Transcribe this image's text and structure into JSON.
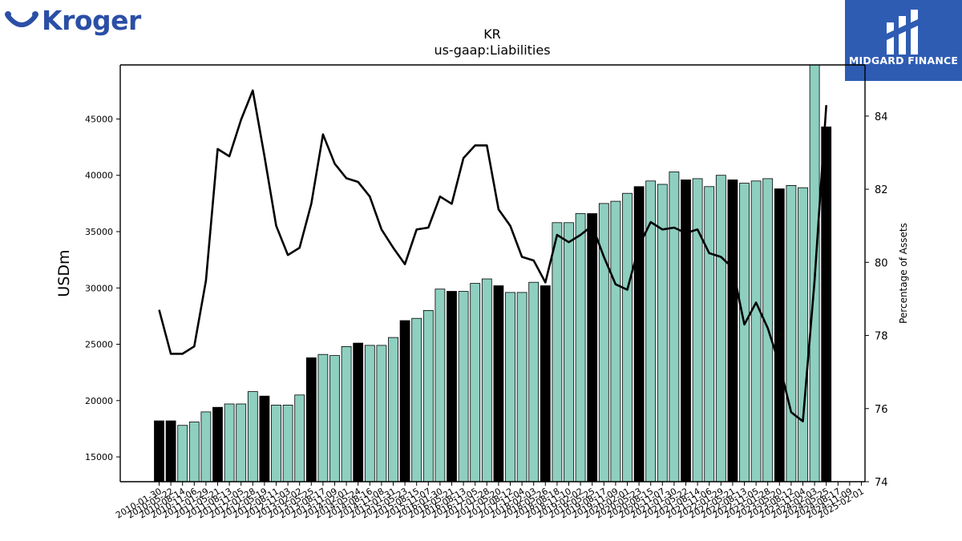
{
  "brand": {
    "name": "Kroger",
    "partner": "MIDGARD FINANCE"
  },
  "colors": {
    "bar_teal": "#8ecfc0",
    "bar_black": "#000000",
    "line": "#000000",
    "kroger_blue": "#2b4fa6",
    "midgard_bg": "#2f5cb3"
  },
  "chart_data": {
    "type": "bar",
    "title": "KR",
    "subtitle": "us-gaap:Liabilities",
    "ylabel": "USDm",
    "y2label": "Percentage of Assets",
    "ylim": [
      12800,
      49800
    ],
    "y2lim": [
      74,
      85.4
    ],
    "yticks": [
      15000,
      20000,
      25000,
      30000,
      35000,
      40000,
      45000
    ],
    "y2ticks": [
      74,
      76,
      78,
      80,
      82,
      84
    ],
    "categories": [
      "2010-01-30",
      "2010-05-22",
      "2010-08-14",
      "2010-11-06",
      "2011-01-29",
      "2011-05-21",
      "2011-08-13",
      "2011-11-05",
      "2012-01-28",
      "2012-05-19",
      "2012-08-11",
      "2012-11-03",
      "2013-02-02",
      "2013-05-25",
      "2013-08-17",
      "2013-11-09",
      "2014-02-01",
      "2014-05-24",
      "2014-08-16",
      "2014-11-08",
      "2015-01-31",
      "2015-05-23",
      "2015-08-15",
      "2015-11-07",
      "2016-01-30",
      "2016-05-21",
      "2016-08-13",
      "2016-11-05",
      "2017-01-28",
      "2017-05-20",
      "2017-08-12",
      "2017-11-04",
      "2018-02-03",
      "2018-05-26",
      "2018-08-18",
      "2018-11-10",
      "2019-02-02",
      "2019-05-25",
      "2019-08-17",
      "2019-11-09",
      "2020-02-01",
      "2020-05-23",
      "2020-08-15",
      "2020-11-07",
      "2021-01-30",
      "2021-05-22",
      "2021-08-14",
      "2021-11-06",
      "2022-01-29",
      "2022-05-21",
      "2022-08-13",
      "2022-11-05",
      "2023-01-28",
      "2023-05-20",
      "2023-08-12",
      "2023-11-04",
      "2024-02-03",
      "2024-05-25",
      "2024-08-17",
      "2024-11-09",
      "2025-02-01"
    ],
    "series": [
      {
        "type": "bar",
        "values": [
          18200,
          18200,
          17800,
          18100,
          19000,
          19400,
          19700,
          19700,
          20800,
          20400,
          19600,
          19600,
          20500,
          23800,
          24100,
          24000,
          24800,
          25100,
          24900,
          24900,
          25600,
          27100,
          27300,
          28000,
          29900,
          29700,
          29700,
          30400,
          30800,
          30200,
          29600,
          29600,
          30500,
          30200,
          35800,
          35800,
          36600,
          36600,
          37500,
          37700,
          38400,
          39000,
          39500,
          39200,
          40300,
          39600,
          39700,
          39000,
          40000,
          39600,
          39300,
          39500,
          39700,
          38800,
          39100,
          38900,
          49800,
          44300,
          null,
          null,
          null
        ],
        "highlight": [
          true,
          true,
          false,
          false,
          false,
          true,
          false,
          false,
          false,
          true,
          false,
          false,
          false,
          true,
          false,
          false,
          false,
          true,
          false,
          false,
          false,
          true,
          false,
          false,
          false,
          true,
          false,
          false,
          false,
          true,
          false,
          false,
          false,
          true,
          false,
          false,
          false,
          true,
          false,
          false,
          false,
          true,
          false,
          false,
          false,
          true,
          false,
          false,
          false,
          true,
          false,
          false,
          false,
          true,
          false,
          false,
          false,
          true,
          false,
          false,
          false
        ]
      },
      {
        "type": "line",
        "values": [
          78.7,
          77.5,
          77.5,
          77.7,
          79.5,
          83.1,
          82.9,
          83.9,
          84.7,
          82.9,
          81.0,
          80.2,
          80.4,
          81.6,
          83.5,
          82.7,
          82.3,
          82.2,
          81.8,
          80.9,
          80.4,
          79.95,
          80.9,
          80.95,
          81.8,
          81.6,
          82.85,
          83.2,
          83.2,
          81.45,
          81.0,
          80.15,
          80.05,
          79.45,
          80.75,
          80.55,
          80.75,
          81.0,
          80.15,
          79.4,
          79.25,
          80.45,
          81.1,
          80.9,
          80.95,
          80.8,
          80.9,
          80.25,
          80.15,
          79.85,
          78.3,
          78.9,
          78.2,
          77.2,
          75.9,
          75.65,
          79.5,
          84.3,
          null,
          null,
          null
        ]
      }
    ]
  }
}
